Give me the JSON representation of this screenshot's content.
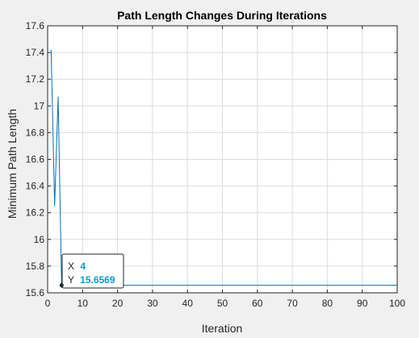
{
  "chart_data": {
    "type": "line",
    "title": "Path Length Changes During Iterations",
    "xlabel": "Iteration",
    "ylabel": "Minimum Path Length",
    "xlim": [
      0,
      100
    ],
    "ylim": [
      15.6,
      17.6
    ],
    "xticks": [
      0,
      10,
      20,
      30,
      40,
      50,
      60,
      70,
      80,
      90,
      100
    ],
    "yticks": [
      "15.6",
      "15.8",
      "16",
      "16.2",
      "16.4",
      "16.6",
      "16.8",
      "17",
      "17.2",
      "17.4",
      "17.6"
    ],
    "grid": true,
    "series": [
      {
        "x": [
          1,
          2,
          3,
          4,
          5,
          100
        ],
        "y": [
          17.42,
          16.25,
          17.07,
          15.6569,
          15.6569,
          15.6569
        ]
      }
    ],
    "colors": {
      "line": "#0072bd",
      "grid": "#dcdcdc",
      "axes": "#262626",
      "plot_bg": "#ffffff",
      "figure_bg": "#f0f0f0",
      "datatip_value": "#0a9bd6"
    },
    "datatip": {
      "x_label": "X",
      "x_value": "4",
      "y_label": "Y",
      "y_value": "15.6569",
      "point": [
        4,
        15.6569
      ]
    }
  }
}
